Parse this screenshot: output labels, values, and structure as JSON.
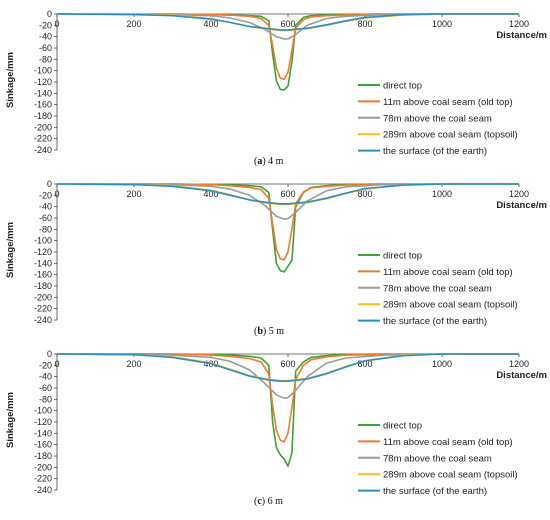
{
  "chart_data": [
    {
      "type": "line",
      "caption_label": "a",
      "caption_text": "4 m",
      "xlabel": "Distance/m",
      "ylabel": "Sinkage/mm",
      "xlim": [
        0,
        1200
      ],
      "ylim": [
        -240,
        0
      ],
      "x_ticks": [
        "0",
        "200",
        "400",
        "600",
        "800",
        "1000",
        "1200"
      ],
      "y_ticks": [
        "0",
        "-20",
        "-40",
        "-60",
        "-80",
        "-100",
        "-120",
        "-140",
        "-160",
        "-180",
        "-200",
        "-220",
        "-240"
      ],
      "legend_position": "right",
      "grid": false,
      "series": [
        {
          "name": "direct top",
          "color": "#3aa335",
          "x": [
            0,
            300,
            400,
            450,
            500,
            530,
            550,
            560,
            570,
            580,
            590,
            600,
            610,
            620,
            640,
            660,
            700,
            750,
            850,
            1000,
            1200
          ],
          "y": [
            0,
            0,
            -1,
            -2,
            -3,
            -4,
            -12,
            -70,
            -118,
            -133,
            -134,
            -127,
            -85,
            -20,
            -6,
            -3,
            -2,
            -1,
            0,
            0,
            0
          ]
        },
        {
          "name": "11m above coal seam (old top)",
          "color": "#f07a2a",
          "x": [
            0,
            300,
            400,
            450,
            500,
            530,
            550,
            560,
            570,
            580,
            590,
            600,
            610,
            620,
            640,
            660,
            700,
            750,
            850,
            1000,
            1200
          ],
          "y": [
            0,
            0,
            -1,
            -2,
            -4,
            -8,
            -20,
            -55,
            -95,
            -113,
            -115,
            -103,
            -65,
            -25,
            -10,
            -5,
            -3,
            -2,
            -1,
            0,
            0
          ]
        },
        {
          "name": "78m above the coal seam",
          "color": "#9b9b9b",
          "x": [
            0,
            300,
            400,
            450,
            500,
            540,
            570,
            590,
            600,
            620,
            650,
            700,
            750,
            850,
            1000,
            1200
          ],
          "y": [
            0,
            -1,
            -3,
            -7,
            -15,
            -27,
            -40,
            -44,
            -44,
            -36,
            -20,
            -8,
            -4,
            -1,
            0,
            0
          ]
        },
        {
          "name": "289m above coal seam (topsoil)",
          "color": "#f5be20",
          "x": [
            0,
            200,
            300,
            400,
            450,
            500,
            550,
            580,
            600,
            650,
            700,
            750,
            800,
            900,
            1000,
            1200
          ],
          "y": [
            0,
            0,
            -2,
            -8,
            -15,
            -22,
            -27,
            -29,
            -29,
            -26,
            -20,
            -13,
            -7,
            -2,
            0,
            0
          ]
        },
        {
          "name": "the surface (of the earth)",
          "color": "#2a8ec4",
          "x": [
            0,
            200,
            300,
            400,
            450,
            500,
            550,
            580,
            600,
            650,
            700,
            750,
            800,
            900,
            1000,
            1200
          ],
          "y": [
            0,
            -1,
            -3,
            -9,
            -15,
            -22,
            -26,
            -28,
            -28,
            -25,
            -19,
            -12,
            -6,
            -1,
            0,
            0
          ]
        }
      ]
    },
    {
      "type": "line",
      "caption_label": "b",
      "caption_text": "5 m",
      "xlabel": "Distance/m",
      "ylabel": "Sinkage/mm",
      "xlim": [
        0,
        1200
      ],
      "ylim": [
        -240,
        0
      ],
      "x_ticks": [
        "0",
        "200",
        "400",
        "600",
        "800",
        "1000",
        "1200"
      ],
      "y_ticks": [
        "0",
        "-20",
        "-40",
        "-60",
        "-80",
        "-100",
        "-120",
        "-140",
        "-160",
        "-180",
        "-200",
        "-220",
        "-240"
      ],
      "legend_position": "right",
      "grid": false,
      "series": [
        {
          "name": "direct top",
          "color": "#3aa335",
          "x": [
            0,
            300,
            400,
            450,
            500,
            530,
            550,
            560,
            570,
            580,
            590,
            600,
            610,
            620,
            640,
            660,
            700,
            750,
            850,
            1000,
            1200
          ],
          "y": [
            0,
            0,
            -1,
            -2,
            -3,
            -5,
            -15,
            -80,
            -140,
            -153,
            -155,
            -145,
            -135,
            -40,
            -15,
            -6,
            -3,
            -1,
            0,
            0,
            0
          ]
        },
        {
          "name": "11m above coal seam (old top)",
          "color": "#f07a2a",
          "x": [
            0,
            300,
            400,
            450,
            500,
            530,
            550,
            560,
            570,
            580,
            590,
            600,
            610,
            620,
            640,
            660,
            700,
            750,
            850,
            1000,
            1200
          ],
          "y": [
            0,
            0,
            -1,
            -3,
            -6,
            -10,
            -25,
            -70,
            -115,
            -132,
            -134,
            -120,
            -80,
            -35,
            -14,
            -7,
            -4,
            -2,
            -1,
            0,
            0
          ]
        },
        {
          "name": "78m above the coal seam",
          "color": "#9b9b9b",
          "x": [
            0,
            300,
            400,
            450,
            500,
            540,
            570,
            590,
            600,
            620,
            650,
            700,
            750,
            850,
            1000,
            1200
          ],
          "y": [
            0,
            -1,
            -4,
            -9,
            -20,
            -38,
            -57,
            -62,
            -61,
            -50,
            -30,
            -12,
            -5,
            -1,
            0,
            0
          ]
        },
        {
          "name": "289m above coal seam (topsoil)",
          "color": "#f5be20",
          "x": [
            0,
            200,
            300,
            400,
            450,
            500,
            550,
            580,
            600,
            650,
            700,
            750,
            800,
            900,
            1000,
            1200
          ],
          "y": [
            0,
            -1,
            -3,
            -11,
            -19,
            -28,
            -34,
            -36,
            -36,
            -33,
            -26,
            -17,
            -9,
            -2,
            0,
            0
          ]
        },
        {
          "name": "the surface (of the earth)",
          "color": "#2a8ec4",
          "x": [
            0,
            200,
            300,
            400,
            450,
            500,
            550,
            580,
            600,
            650,
            700,
            750,
            800,
            900,
            1000,
            1200
          ],
          "y": [
            0,
            -1,
            -4,
            -12,
            -20,
            -28,
            -33,
            -35,
            -35,
            -32,
            -25,
            -16,
            -8,
            -2,
            0,
            0
          ]
        }
      ]
    },
    {
      "type": "line",
      "caption_label": "c",
      "caption_text": "6 m",
      "xlabel": "Distance/m",
      "ylabel": "Sinkage/mm",
      "xlim": [
        0,
        1200
      ],
      "ylim": [
        -240,
        0
      ],
      "x_ticks": [
        "0",
        "200",
        "400",
        "600",
        "800",
        "1000",
        "1200"
      ],
      "y_ticks": [
        "0",
        "-20",
        "-40",
        "-60",
        "-80",
        "-100",
        "-120",
        "-140",
        "-160",
        "-180",
        "-200",
        "-220",
        "-240"
      ],
      "legend_position": "right",
      "grid": false,
      "series": [
        {
          "name": "direct top",
          "color": "#3aa335",
          "x": [
            0,
            300,
            400,
            450,
            500,
            530,
            550,
            560,
            570,
            580,
            590,
            600,
            610,
            620,
            640,
            660,
            700,
            750,
            850,
            1000,
            1200
          ],
          "y": [
            0,
            0,
            -1,
            -2,
            -4,
            -7,
            -20,
            -120,
            -165,
            -178,
            -185,
            -198,
            -175,
            -30,
            -14,
            -6,
            -3,
            -1,
            0,
            0,
            0
          ]
        },
        {
          "name": "11m above coal seam (old top)",
          "color": "#f07a2a",
          "x": [
            0,
            300,
            400,
            450,
            500,
            530,
            550,
            560,
            570,
            580,
            590,
            600,
            610,
            620,
            640,
            660,
            700,
            750,
            850,
            1000,
            1200
          ],
          "y": [
            0,
            0,
            -2,
            -4,
            -8,
            -14,
            -35,
            -90,
            -135,
            -152,
            -155,
            -140,
            -95,
            -45,
            -20,
            -10,
            -5,
            -2,
            -1,
            0,
            0
          ]
        },
        {
          "name": "78m above the coal seam",
          "color": "#9b9b9b",
          "x": [
            0,
            300,
            400,
            450,
            500,
            540,
            570,
            590,
            600,
            620,
            650,
            700,
            750,
            850,
            1000,
            1200
          ],
          "y": [
            0,
            -2,
            -6,
            -13,
            -28,
            -52,
            -72,
            -78,
            -77,
            -64,
            -40,
            -16,
            -7,
            -2,
            0,
            0
          ]
        },
        {
          "name": "289m above coal seam (topsoil)",
          "color": "#f5be20",
          "x": [
            0,
            200,
            300,
            400,
            450,
            500,
            550,
            580,
            600,
            650,
            700,
            750,
            800,
            900,
            1000,
            1200
          ],
          "y": [
            0,
            -1,
            -5,
            -16,
            -27,
            -38,
            -45,
            -47,
            -47,
            -43,
            -34,
            -22,
            -12,
            -2,
            0,
            0
          ]
        },
        {
          "name": "the surface (of the earth)",
          "color": "#2a8ec4",
          "x": [
            0,
            200,
            300,
            400,
            450,
            500,
            550,
            580,
            600,
            650,
            700,
            750,
            800,
            900,
            1000,
            1200
          ],
          "y": [
            0,
            -1,
            -6,
            -17,
            -28,
            -39,
            -46,
            -48,
            -48,
            -44,
            -35,
            -23,
            -12,
            -3,
            0,
            0
          ]
        }
      ]
    }
  ]
}
